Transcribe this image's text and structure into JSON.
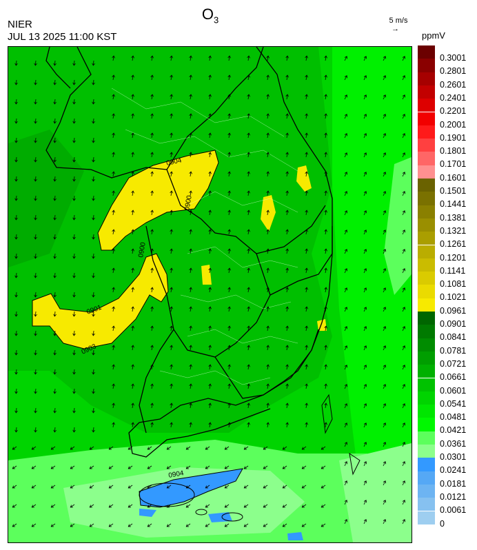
{
  "header": {
    "title_main": "O",
    "title_sub": "3",
    "agency": "NIER",
    "datetime": "JUL 13 2025 11:00 KST",
    "vector_reference": "5 m/s",
    "unit": "ppmV"
  },
  "legend": {
    "colors": [
      "#6b0000",
      "#8a0000",
      "#a60000",
      "#c20000",
      "#dd0000",
      "#f20000",
      "#ff1a1a",
      "#ff4040",
      "#ff6666",
      "#ff9090",
      "#6a6200",
      "#7a7100",
      "#8a8000",
      "#9a8f00",
      "#aa9e00",
      "#baad00",
      "#cabc00",
      "#dacb00",
      "#eadb00",
      "#f7ea00",
      "#006600",
      "#007a00",
      "#008c00",
      "#009e00",
      "#00b000",
      "#00c200",
      "#00d400",
      "#00e600",
      "#00f800",
      "#5cff5c",
      "#8cff8c",
      "#3399ff",
      "#55a8f5",
      "#6db4f2",
      "#86c1f0",
      "#9ecef0"
    ],
    "labels": [
      "0.3001",
      "0.2801",
      "0.2601",
      "0.2401",
      "0.2201",
      "0.2001",
      "0.1901",
      "0.1801",
      "0.1701",
      "0.1601",
      "0.1501",
      "0.1441",
      "0.1381",
      "0.1321",
      "0.1261",
      "0.1201",
      "0.1141",
      "0.1081",
      "0.1021",
      "0.0961",
      "0.0901",
      "0.0841",
      "0.0781",
      "0.0721",
      "0.0661",
      "0.0601",
      "0.0541",
      "0.0481",
      "0.0421",
      "0.0361",
      "0.0301",
      "0.0241",
      "0.0181",
      "0.0121",
      "0.0061",
      "0"
    ]
  },
  "map": {
    "contour_labels": [
      "0904",
      "0900",
      "0900",
      "0901",
      "0903",
      "0904"
    ]
  }
}
